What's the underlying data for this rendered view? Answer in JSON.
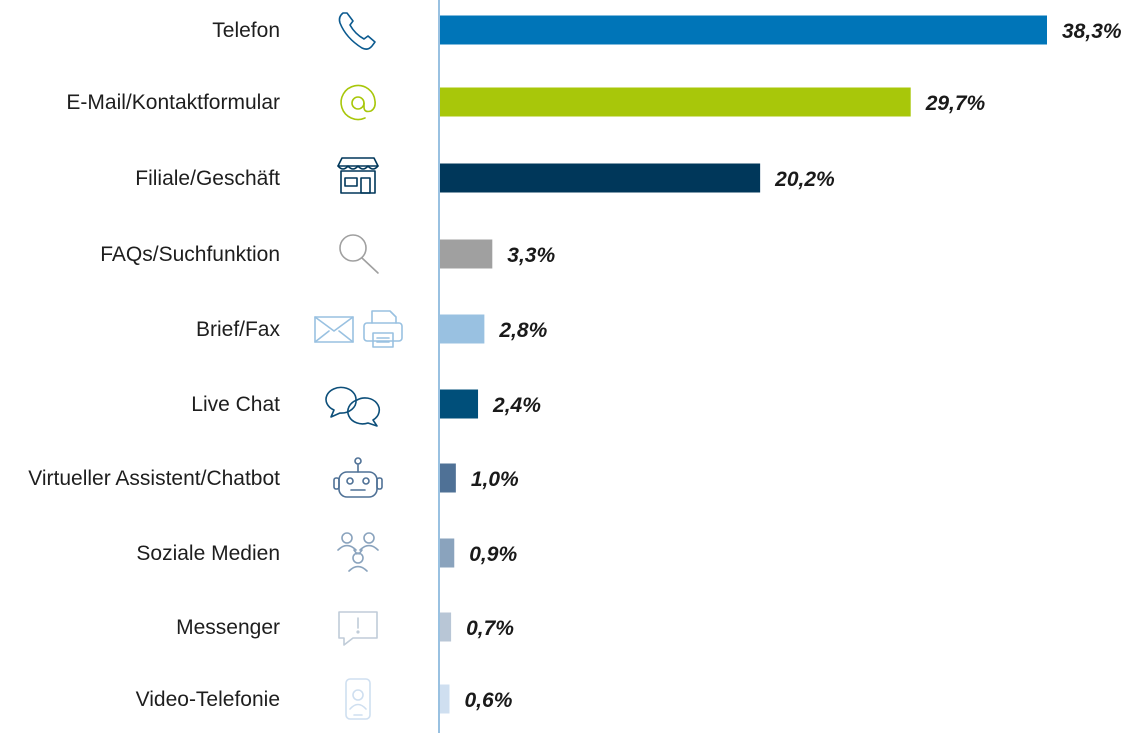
{
  "chart_data": {
    "type": "bar",
    "orientation": "horizontal",
    "categories": [
      "Telefon",
      "E-Mail/Kontaktformular",
      "Filiale/Geschäft",
      "FAQs/Suchfunktion",
      "Brief/Fax",
      "Live Chat",
      "Virtueller Assistent/Chatbot",
      "Soziale Medien",
      "Messenger",
      "Video-Telefonie"
    ],
    "values": [
      38.3,
      29.7,
      20.2,
      3.3,
      2.8,
      2.4,
      1.0,
      0.9,
      0.7,
      0.6
    ],
    "value_labels": [
      "38,3%",
      "29,7%",
      "20,2%",
      "3,3%",
      "2,8%",
      "2,4%",
      "1,0%",
      "0,9%",
      "0,7%",
      "0,6%"
    ],
    "colors": [
      "#0075b8",
      "#a8c70a",
      "#00375a",
      "#a0a0a0",
      "#99c1e1",
      "#004f7a",
      "#4f7196",
      "#8aa3bd",
      "#b8c6d6",
      "#cfdff0"
    ],
    "icons": [
      "phone-icon",
      "at-sign-icon",
      "store-icon",
      "magnifier-icon",
      "envelope-printer-icon",
      "chat-bubbles-icon",
      "robot-icon",
      "social-people-icon",
      "messenger-icon",
      "video-phone-icon"
    ],
    "icon_colors": [
      "#0b5a8f",
      "#a8c70a",
      "#00375a",
      "#a0a0a0",
      "#99c1e1",
      "#0d4f7a",
      "#4f7196",
      "#8aa3bd",
      "#c0ccd8",
      "#cfdff0"
    ],
    "xlim": [
      0,
      38.3
    ],
    "axis_color": "#99c1e1",
    "grid": false,
    "legend": "none",
    "title": "",
    "xlabel": "",
    "ylabel": ""
  }
}
